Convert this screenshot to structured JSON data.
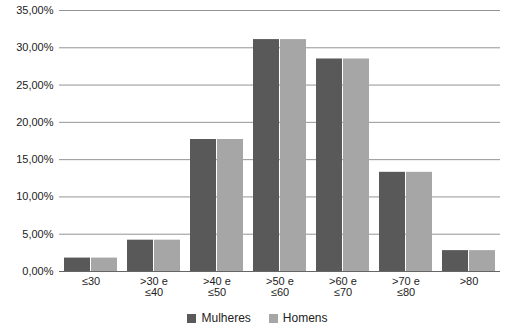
{
  "chart_data": {
    "type": "bar",
    "categories": [
      "≤30",
      ">30 e\n≤40",
      ">40 e\n≤50",
      ">50 e\n≤60",
      ">60 e\n≤70",
      ">70 e\n≤80",
      ">80"
    ],
    "series": [
      {
        "name": "Mulheres",
        "color": "#595959",
        "values": [
          1.8,
          4.2,
          17.7,
          31.1,
          28.5,
          13.3,
          2.8
        ]
      },
      {
        "name": "Homens",
        "color": "#a6a6a6",
        "values": [
          1.8,
          4.2,
          17.7,
          31.1,
          28.5,
          13.3,
          2.8
        ]
      }
    ],
    "ylim": [
      0,
      35
    ],
    "yticks": [
      {
        "value": 0,
        "label": "0,00%"
      },
      {
        "value": 5,
        "label": "5,00%"
      },
      {
        "value": 10,
        "label": "10,00%"
      },
      {
        "value": 15,
        "label": "15,00%"
      },
      {
        "value": 20,
        "label": "20,00%"
      },
      {
        "value": 25,
        "label": "25,00%"
      },
      {
        "value": 30,
        "label": "30,00%"
      },
      {
        "value": 35,
        "label": "35,00%"
      }
    ],
    "grid": true,
    "legend": "bottom"
  }
}
